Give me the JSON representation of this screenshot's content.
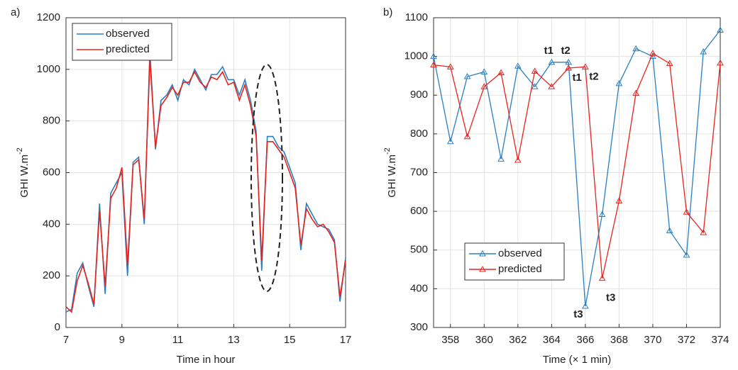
{
  "chart_data": [
    {
      "type": "line",
      "label": "a)",
      "xlabel": "Time in hour",
      "ylabel": "GHI  W.m",
      "ylabel_sup": "-2",
      "xlim": [
        7,
        17
      ],
      "xticks": [
        7,
        9,
        11,
        13,
        15,
        17
      ],
      "ylim": [
        0,
        1200
      ],
      "yticks": [
        0,
        200,
        400,
        600,
        800,
        1000,
        1200
      ],
      "grid": true,
      "legend": "upper left",
      "markers": false,
      "x": [
        7,
        7.2,
        7.4,
        7.6,
        7.8,
        8,
        8.2,
        8.4,
        8.6,
        8.8,
        9,
        9.2,
        9.4,
        9.6,
        9.8,
        10,
        10.2,
        10.4,
        10.6,
        10.8,
        11,
        11.2,
        11.4,
        11.6,
        11.8,
        12,
        12.2,
        12.4,
        12.6,
        12.8,
        13,
        13.2,
        13.4,
        13.6,
        13.8,
        14,
        14.2,
        14.4,
        14.6,
        14.8,
        15,
        15.2,
        15.4,
        15.6,
        15.8,
        16,
        16.2,
        16.4,
        16.6,
        16.8,
        17
      ],
      "series": [
        {
          "name": "observed",
          "color": "#2a7fc1",
          "values": [
            60,
            70,
            210,
            250,
            160,
            80,
            480,
            130,
            520,
            560,
            600,
            200,
            640,
            660,
            400,
            1070,
            690,
            880,
            900,
            940,
            880,
            960,
            940,
            1000,
            960,
            920,
            980,
            980,
            1010,
            960,
            960,
            900,
            960,
            880,
            760,
            220,
            740,
            740,
            700,
            680,
            620,
            560,
            300,
            480,
            440,
            400,
            390,
            380,
            340,
            100,
            270
          ]
        },
        {
          "name": "predicted",
          "color": "#e8231d",
          "values": [
            80,
            60,
            180,
            240,
            170,
            90,
            450,
            160,
            500,
            540,
            620,
            240,
            630,
            650,
            420,
            1040,
            700,
            860,
            890,
            930,
            900,
            950,
            950,
            990,
            950,
            930,
            970,
            960,
            990,
            940,
            950,
            880,
            940,
            860,
            740,
            260,
            720,
            720,
            690,
            660,
            600,
            540,
            320,
            460,
            420,
            390,
            400,
            370,
            330,
            120,
            260
          ]
        }
      ]
    },
    {
      "type": "line",
      "label": "b)",
      "xlabel": "Time (× 1 min)",
      "ylabel": "GHI  W.m",
      "ylabel_sup": "-2",
      "xlim": [
        357,
        374
      ],
      "xticks": [
        358,
        360,
        362,
        364,
        366,
        368,
        370,
        372,
        374
      ],
      "ylim": [
        300,
        1100
      ],
      "yticks": [
        300,
        400,
        500,
        600,
        700,
        800,
        900,
        1000,
        1100
      ],
      "grid": true,
      "legend": "lower left",
      "markers": true,
      "x": [
        357,
        358,
        359,
        360,
        361,
        362,
        363,
        364,
        365,
        366,
        367,
        368,
        369,
        370,
        371,
        372,
        373,
        374
      ],
      "series": [
        {
          "name": "observed",
          "color": "#2a7fc1",
          "values": [
            1000,
            780,
            948,
            960,
            735,
            975,
            922,
            985,
            985,
            355,
            592,
            930,
            1020,
            1000,
            550,
            487,
            1012,
            1068
          ]
        },
        {
          "name": "predicted",
          "color": "#e8231d",
          "values": [
            978,
            973,
            793,
            922,
            958,
            732,
            962,
            922,
            970,
            973,
            427,
            627,
            905,
            1008,
            982,
            598,
            545,
            983
          ]
        }
      ],
      "annotations": [
        {
          "text": "t1",
          "series": 0,
          "x": 364
        },
        {
          "text": "t2",
          "series": 0,
          "x": 365
        },
        {
          "text": "t1",
          "series": 1,
          "x": 365
        },
        {
          "text": "t2",
          "series": 1,
          "x": 366
        },
        {
          "text": "t3",
          "series": 0,
          "x": 366
        },
        {
          "text": "t3",
          "series": 1,
          "x": 367
        }
      ]
    }
  ]
}
